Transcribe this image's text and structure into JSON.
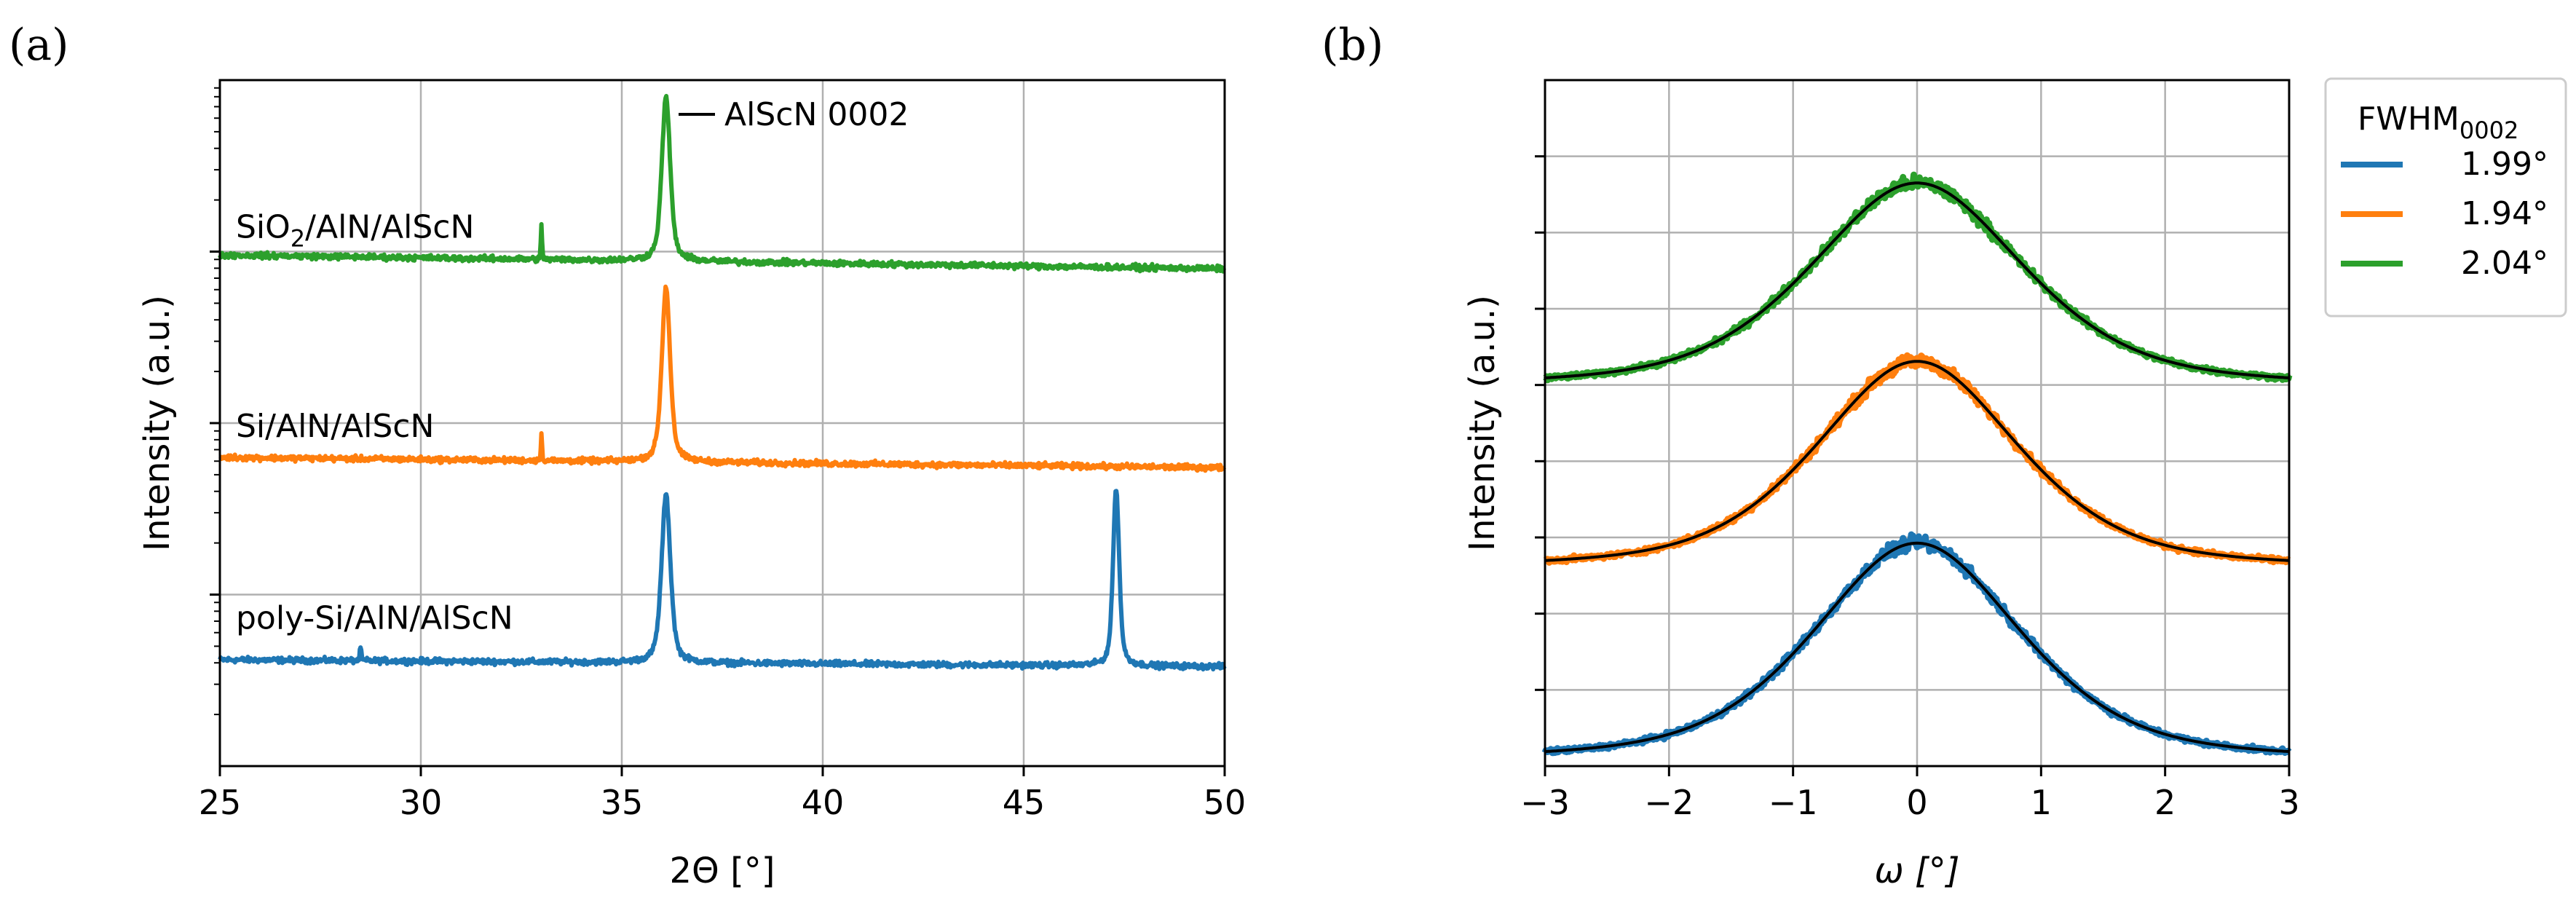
{
  "figure": {
    "panel_a_label": "(a)",
    "panel_b_label": "(b)"
  },
  "chart_data": [
    {
      "type": "line",
      "panel": "(a)",
      "title": "",
      "xlabel": "2Θ [°]",
      "ylabel": "Intensity (a.u.)",
      "xlim": [
        25,
        50
      ],
      "ylim": [
        0,
        1
      ],
      "yscale": "log (stacked, arbitrary offsets, no tick labels)",
      "grid": true,
      "xticks": [
        "25",
        "30",
        "35",
        "40",
        "45",
        "50"
      ],
      "annotation": "AlScN 0002",
      "series": [
        {
          "name": "poly-Si/AlN/AlScN",
          "label_prefix": "poly-Si/AlN/AlScN",
          "label_sub": "",
          "label_suffix": "",
          "color": "#1f77b4",
          "baseline": 0.155,
          "baseline_end": 0.145,
          "noise": 0.012,
          "peaks": [
            {
              "position": 36.1,
              "height": 0.245,
              "width": 0.32
            },
            {
              "position": 47.3,
              "height": 0.26,
              "width": 0.22
            },
            {
              "position": 28.5,
              "height": 0.02,
              "width": 0.05
            }
          ]
        },
        {
          "name": "Si/AlN/AlScN",
          "label_prefix": "Si/AlN/AlScN",
          "label_sub": "",
          "label_suffix": "",
          "color": "#ff7f0e",
          "baseline": 0.45,
          "baseline_end": 0.435,
          "noise": 0.012,
          "peaks": [
            {
              "position": 36.1,
              "height": 0.255,
              "width": 0.3
            },
            {
              "position": 33.0,
              "height": 0.04,
              "width": 0.04
            }
          ]
        },
        {
          "name": "SiO2/AlN/AlScN",
          "label_prefix": "SiO",
          "label_sub": "2",
          "label_suffix": "/AlN/AlScN",
          "color": "#2ca02c",
          "baseline": 0.745,
          "baseline_end": 0.725,
          "noise": 0.012,
          "peaks": [
            {
              "position": 36.1,
              "height": 0.24,
              "width": 0.3
            },
            {
              "position": 33.0,
              "height": 0.05,
              "width": 0.04
            }
          ]
        }
      ]
    },
    {
      "type": "line",
      "panel": "(b)",
      "title": "",
      "xlabel": "ω [°]",
      "ylabel": "Intensity (a.u.)",
      "xlim": [
        -3,
        3
      ],
      "ylim": [
        0,
        1
      ],
      "grid": true,
      "xticks": [
        "−3",
        "−2",
        "−1",
        "0",
        "1",
        "2",
        "3"
      ],
      "legend": {
        "title_main": "FWHM",
        "title_sub": "0002",
        "location": "outside right"
      },
      "series": [
        {
          "name": "1.99°",
          "color": "#1f77b4",
          "fwhm": 1.99,
          "baseline": 0.0,
          "peak_height": 0.32,
          "noise": 0.012
        },
        {
          "name": "1.94°",
          "color": "#ff7f0e",
          "fwhm": 1.94,
          "baseline": 0.28,
          "peak_height": 0.305,
          "noise": 0.012
        },
        {
          "name": "2.04°",
          "color": "#2ca02c",
          "fwhm": 2.04,
          "baseline": 0.545,
          "peak_height": 0.3,
          "noise": 0.012
        }
      ],
      "fit_line_color": "#000000"
    }
  ]
}
